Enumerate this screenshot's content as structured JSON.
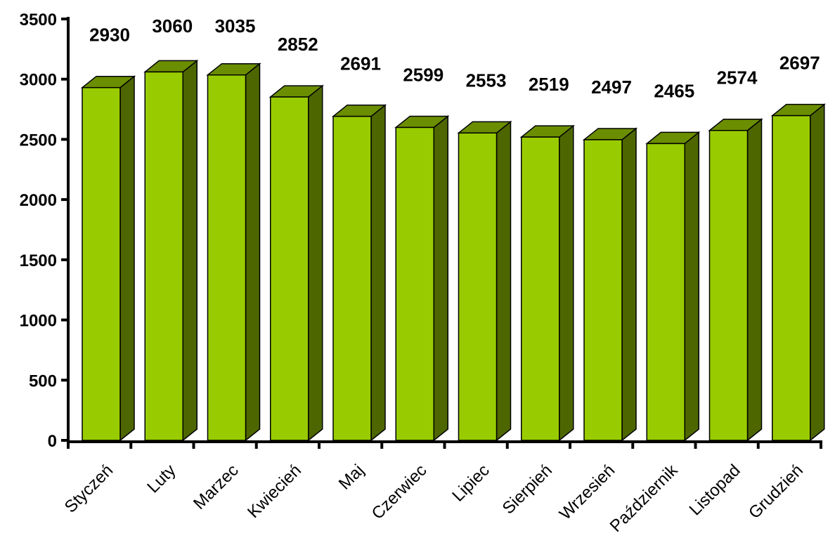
{
  "chart_data": {
    "type": "bar",
    "style": "3d-column",
    "categories": [
      "Styczeń",
      "Luty",
      "Marzec",
      "Kwiecień",
      "Maj",
      "Czerwiec",
      "Lipiec",
      "Sierpień",
      "Wrzesień",
      "Październik",
      "Listopad",
      "Grudzień"
    ],
    "values": [
      2930,
      3060,
      3035,
      2852,
      2691,
      2599,
      2553,
      2519,
      2497,
      2465,
      2574,
      2697
    ],
    "data_labels": [
      "2930",
      "3060",
      "3035",
      "2852",
      "2691",
      "2599",
      "2553",
      "2519",
      "2497",
      "2465",
      "2574",
      "2697"
    ],
    "title": "",
    "xlabel": "",
    "ylabel": "",
    "ylim": [
      0,
      3500
    ],
    "yticks": [
      0,
      500,
      1000,
      1500,
      2000,
      2500,
      3000,
      3500
    ],
    "ytick_labels": [
      "0",
      "500",
      "1000",
      "1500",
      "2000",
      "2500",
      "3000",
      "3500"
    ],
    "grid": false,
    "legend": "none",
    "colors": {
      "bar_front": "#99CC00",
      "bar_top": "#6B8E00",
      "bar_side": "#4D6600",
      "outline": "#000000"
    }
  }
}
